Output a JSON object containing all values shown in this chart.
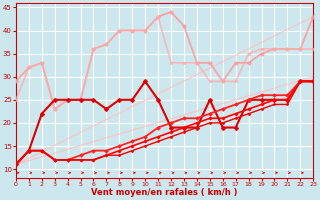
{
  "xlabel": "Vent moyen/en rafales ( km/h )",
  "xlim": [
    0,
    23
  ],
  "ylim": [
    8,
    46
  ],
  "xticks": [
    0,
    1,
    2,
    3,
    4,
    5,
    6,
    7,
    8,
    9,
    10,
    11,
    12,
    13,
    14,
    15,
    16,
    17,
    18,
    19,
    20,
    21,
    22,
    23
  ],
  "yticks": [
    10,
    15,
    20,
    25,
    30,
    35,
    40,
    45
  ],
  "bg_color": "#cce8ee",
  "grid_color": "#ffffff",
  "lines": [
    {
      "x": [
        0,
        23
      ],
      "y": [
        11,
        43
      ],
      "color": "#ffbbbb",
      "lw": 1.0,
      "marker": null,
      "ms": 0,
      "alpha": 0.7
    },
    {
      "x": [
        0,
        23
      ],
      "y": [
        11,
        30
      ],
      "color": "#ffbbbb",
      "lw": 1.0,
      "marker": null,
      "ms": 0,
      "alpha": 0.7
    },
    {
      "x": [
        0,
        1,
        2,
        3,
        4,
        5,
        6,
        7,
        8,
        9,
        10,
        11,
        12,
        13,
        14,
        15,
        16,
        17,
        18,
        19,
        20,
        21,
        22,
        23
      ],
      "y": [
        29,
        32,
        33,
        23,
        25,
        25,
        36,
        37,
        40,
        40,
        40,
        43,
        44,
        41,
        33,
        33,
        29,
        33,
        33,
        35,
        36,
        36,
        36,
        43
      ],
      "color": "#ff9999",
      "lw": 1.3,
      "marker": "o",
      "ms": 2.5,
      "alpha": 0.85
    },
    {
      "x": [
        0,
        1,
        2,
        3,
        4,
        5,
        6,
        7,
        8,
        9,
        10,
        11,
        12,
        13,
        14,
        15,
        16,
        17,
        18,
        19,
        20,
        21,
        22,
        23
      ],
      "y": [
        25,
        32,
        33,
        23,
        25,
        25,
        36,
        37,
        40,
        40,
        40,
        43,
        33,
        33,
        33,
        29,
        29,
        29,
        35,
        36,
        36,
        36,
        36,
        36
      ],
      "color": "#ffaaaa",
      "lw": 1.2,
      "marker": "o",
      "ms": 2.0,
      "alpha": 0.75
    },
    {
      "x": [
        0,
        1,
        2,
        3,
        4,
        5,
        6,
        7,
        8,
        9,
        10,
        11,
        12,
        13,
        14,
        15,
        16,
        17,
        18,
        19,
        20,
        21,
        22,
        23
      ],
      "y": [
        11,
        14,
        22,
        25,
        25,
        25,
        25,
        23,
        25,
        25,
        29,
        25,
        19,
        19,
        19,
        25,
        19,
        19,
        25,
        25,
        25,
        25,
        29,
        29
      ],
      "color": "#dd0000",
      "lw": 1.5,
      "marker": "D",
      "ms": 2.5,
      "alpha": 1.0
    },
    {
      "x": [
        0,
        1,
        2,
        3,
        4,
        5,
        6,
        7,
        8,
        9,
        10,
        11,
        12,
        13,
        14,
        15,
        16,
        17,
        18,
        19,
        20,
        21,
        22,
        23
      ],
      "y": [
        11,
        14,
        14,
        12,
        12,
        13,
        14,
        14,
        15,
        16,
        17,
        19,
        20,
        21,
        21,
        22,
        23,
        24,
        25,
        26,
        26,
        26,
        29,
        29
      ],
      "color": "#ff2222",
      "lw": 1.3,
      "marker": "D",
      "ms": 2.0,
      "alpha": 1.0
    },
    {
      "x": [
        0,
        1,
        2,
        3,
        4,
        5,
        6,
        7,
        8,
        9,
        10,
        11,
        12,
        13,
        14,
        15,
        16,
        17,
        18,
        19,
        20,
        21,
        22,
        23
      ],
      "y": [
        11,
        14,
        14,
        12,
        12,
        12,
        12,
        13,
        14,
        15,
        16,
        17,
        18,
        19,
        20,
        21,
        21,
        22,
        23,
        24,
        25,
        25,
        29,
        29
      ],
      "color": "#ff0000",
      "lw": 1.2,
      "marker": "D",
      "ms": 1.8,
      "alpha": 1.0
    },
    {
      "x": [
        0,
        1,
        2,
        3,
        4,
        5,
        6,
        7,
        8,
        9,
        10,
        11,
        12,
        13,
        14,
        15,
        16,
        17,
        18,
        19,
        20,
        21,
        22,
        23
      ],
      "y": [
        11,
        14,
        14,
        12,
        12,
        12,
        12,
        13,
        13,
        14,
        15,
        16,
        17,
        18,
        19,
        20,
        20,
        21,
        22,
        23,
        24,
        24,
        29,
        29
      ],
      "color": "#ee0000",
      "lw": 1.0,
      "marker": "D",
      "ms": 1.5,
      "alpha": 1.0
    }
  ]
}
